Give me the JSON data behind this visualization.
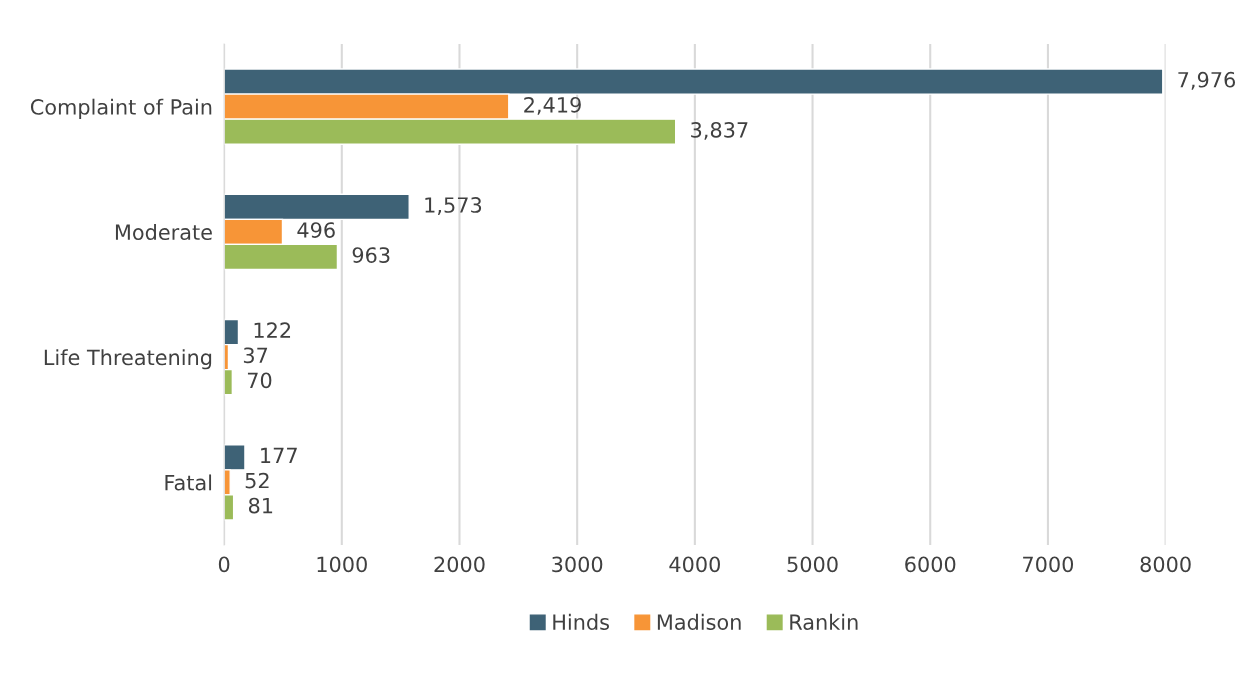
{
  "chart_data": {
    "type": "bar",
    "orientation": "horizontal",
    "categories": [
      "Complaint of Pain",
      "Moderate",
      "Life Threatening",
      "Fatal"
    ],
    "series": [
      {
        "name": "Hinds",
        "color": "#3e6276",
        "values": [
          7976,
          1573,
          122,
          177
        ],
        "value_labels": [
          "7,976",
          "1,573",
          "122",
          "177"
        ]
      },
      {
        "name": "Madison",
        "color": "#f79537",
        "values": [
          2419,
          496,
          37,
          52
        ],
        "value_labels": [
          "2,419",
          "496",
          "37",
          "52"
        ]
      },
      {
        "name": "Rankin",
        "color": "#9bbb59",
        "values": [
          3837,
          963,
          70,
          81
        ],
        "value_labels": [
          "3,837",
          "963",
          "70",
          "81"
        ]
      }
    ],
    "xlim": [
      0,
      8000
    ],
    "xticks": [
      0,
      1000,
      2000,
      3000,
      4000,
      5000,
      6000,
      7000,
      8000
    ],
    "grid": "x",
    "legend": "bottom"
  }
}
